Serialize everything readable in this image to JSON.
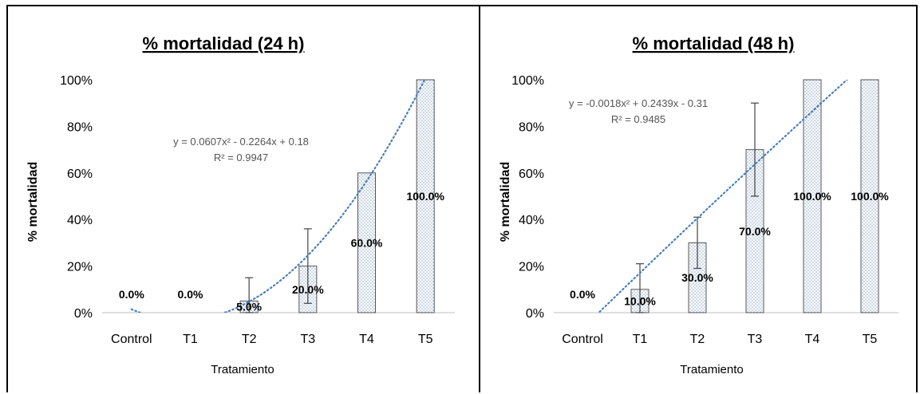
{
  "colors": {
    "bar_stroke": "#555555",
    "bar_dot": "#8fa9cc",
    "trend": "#4a7ebb",
    "error": "#444444",
    "axis": "#bfbfbf"
  },
  "chart_data": [
    {
      "type": "bar",
      "title": "% mortalidad (24 h)",
      "xlabel": "Tratamiento",
      "ylabel": "% mortalidad",
      "categories": [
        "Control",
        "T1",
        "T2",
        "T3",
        "T4",
        "T5"
      ],
      "values": [
        0,
        0,
        5,
        20,
        60,
        100
      ],
      "data_labels": [
        "0.0%",
        "0.0%",
        "5.0%",
        "20.0%",
        "60.0%",
        "100.0%"
      ],
      "error": [
        0,
        0,
        10,
        16,
        0,
        0
      ],
      "ylim": [
        0,
        100
      ],
      "yticks": [
        "0%",
        "20%",
        "40%",
        "60%",
        "80%",
        "100%"
      ],
      "yticks_values": [
        0,
        20,
        40,
        60,
        80,
        100
      ],
      "trendline": {
        "type": "polynomial",
        "coef": [
          0.0607,
          -0.2264,
          0.18
        ],
        "equation": "y = 0.0607x² - 0.2264x + 0.18",
        "r2": "R² = 0.9947"
      },
      "grid": false
    },
    {
      "type": "bar",
      "title": "% mortalidad (48 h)",
      "xlabel": "Tratamiento",
      "ylabel": "% mortalidad",
      "categories": [
        "Control",
        "T1",
        "T2",
        "T3",
        "T4",
        "T5"
      ],
      "values": [
        0,
        10,
        30,
        70,
        100,
        100
      ],
      "data_labels": [
        "0.0%",
        "10.0%",
        "30.0%",
        "70.0%",
        "100.0%",
        "100.0%"
      ],
      "error": [
        0,
        11,
        11,
        20,
        0,
        0
      ],
      "ylim": [
        0,
        100
      ],
      "yticks": [
        "0%",
        "20%",
        "40%",
        "60%",
        "80%",
        "100%"
      ],
      "yticks_values": [
        0,
        20,
        40,
        60,
        80,
        100
      ],
      "trendline": {
        "type": "polynomial",
        "coef": [
          -0.0018,
          0.2439,
          -0.31
        ],
        "equation": "y = -0.0018x² + 0.2439x - 0.31",
        "r2": "R² = 0.9485"
      },
      "grid": false
    }
  ]
}
